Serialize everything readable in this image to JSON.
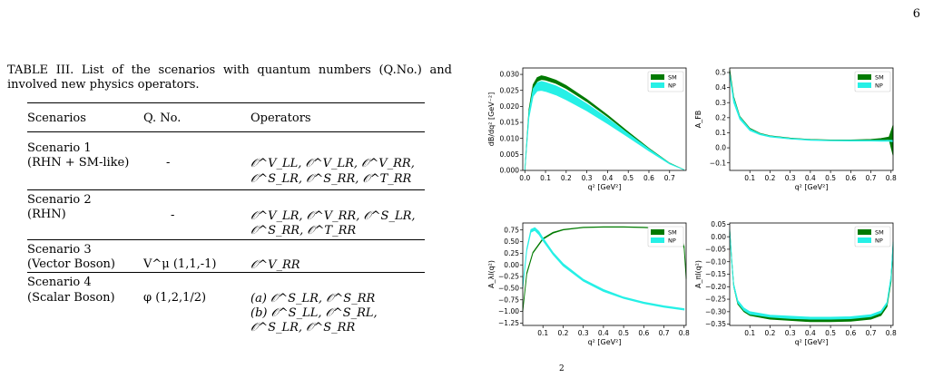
{
  "page_number": "6",
  "caption": "TABLE III. List of the scenarios with quantum numbers (Q.No.) and involved new physics operators.",
  "table": {
    "headers": [
      "Scenarios",
      "Q. No.",
      "Operators"
    ],
    "rows": [
      {
        "name": [
          "Scenario 1",
          "(RHN + SM-like)"
        ],
        "qno": "-",
        "ops": [
          "𝒪^V_LL, 𝒪^V_LR, 𝒪^V_RR,",
          "𝒪^S_LR, 𝒪^S_RR, 𝒪^T_RR"
        ]
      },
      {
        "name": [
          "Scenario 2",
          "(RHN)"
        ],
        "qno": "-",
        "ops": [
          "𝒪^V_LR, 𝒪^V_RR, 𝒪^S_LR,",
          "𝒪^S_RR, 𝒪^T_RR"
        ]
      },
      {
        "name": [
          "Scenario 3",
          "(Vector Boson)"
        ],
        "qno": "V^μ (1,1,-1)",
        "ops": [
          "𝒪^V_RR"
        ]
      },
      {
        "name": [
          "Scenario 4",
          "(Scalar Boson)"
        ],
        "qno": "φ (1,2,1/2)",
        "ops": [
          "(a) 𝒪^S_LR, 𝒪^S_RR",
          "(b) 𝒪^S_LL, 𝒪^S_RL,",
          "𝒪^S_LR, 𝒪^S_RR"
        ]
      }
    ]
  },
  "figure_text_below": "2",
  "chart_data": [
    {
      "type": "line",
      "ylabel": "dB/dq² [GeV⁻²]",
      "xlabel": "q² [GeV²]",
      "xlim": [
        -0.01,
        0.78
      ],
      "ylim": [
        0.0,
        0.032
      ],
      "xticks": [
        "0.0",
        "0.1",
        "0.2",
        "0.3",
        "0.4",
        "0.5",
        "0.6",
        "0.7"
      ],
      "yticks": [
        "0.000",
        "0.005",
        "0.010",
        "0.015",
        "0.020",
        "0.025",
        "0.030"
      ],
      "legend_placement": "top-right",
      "series": [
        {
          "name": "SM",
          "color": "#007a00",
          "x": [
            0.0,
            0.02,
            0.04,
            0.06,
            0.08,
            0.1,
            0.15,
            0.2,
            0.3,
            0.4,
            0.5,
            0.6,
            0.7,
            0.77
          ],
          "lower": [
            0.0,
            0.018,
            0.0255,
            0.0278,
            0.0284,
            0.0282,
            0.0272,
            0.0256,
            0.0215,
            0.0168,
            0.0117,
            0.0067,
            0.0022,
            0.0002
          ],
          "upper": [
            0.0,
            0.019,
            0.0268,
            0.029,
            0.0296,
            0.0293,
            0.0282,
            0.0265,
            0.0222,
            0.0173,
            0.012,
            0.0069,
            0.0023,
            0.0002
          ]
        },
        {
          "name": "NP",
          "color": "#26f0e6",
          "x": [
            0.0,
            0.02,
            0.04,
            0.06,
            0.08,
            0.1,
            0.15,
            0.2,
            0.3,
            0.4,
            0.5,
            0.6,
            0.7,
            0.77
          ],
          "lower": [
            0.0,
            0.0165,
            0.0232,
            0.0248,
            0.025,
            0.0247,
            0.0236,
            0.0221,
            0.0186,
            0.0146,
            0.0104,
            0.0061,
            0.002,
            0.0002
          ],
          "upper": [
            0.0,
            0.0182,
            0.0255,
            0.0274,
            0.0278,
            0.0275,
            0.0264,
            0.0248,
            0.0208,
            0.0163,
            0.0115,
            0.0067,
            0.0022,
            0.0002
          ]
        }
      ]
    },
    {
      "type": "line",
      "ylabel": "A_FB",
      "xlabel": "q² [GeV²]",
      "xlim": [
        0.0,
        0.81
      ],
      "ylim": [
        -0.15,
        0.53
      ],
      "xticks": [
        "0.1",
        "0.2",
        "0.3",
        "0.4",
        "0.5",
        "0.6",
        "0.7",
        "0.8"
      ],
      "yticks": [
        "−0.1",
        "0.0",
        "0.1",
        "0.2",
        "0.3",
        "0.4",
        "0.5"
      ],
      "legend_placement": "top-right",
      "series": [
        {
          "name": "SM",
          "color": "#007a00",
          "x": [
            0.0,
            0.02,
            0.05,
            0.1,
            0.15,
            0.2,
            0.3,
            0.4,
            0.5,
            0.6,
            0.7,
            0.75,
            0.79,
            0.81
          ],
          "lower": [
            0.5,
            0.32,
            0.2,
            0.12,
            0.09,
            0.075,
            0.06,
            0.052,
            0.048,
            0.048,
            0.05,
            0.053,
            0.055,
            -0.05
          ],
          "upper": [
            0.52,
            0.34,
            0.21,
            0.13,
            0.097,
            0.08,
            0.065,
            0.056,
            0.052,
            0.052,
            0.056,
            0.062,
            0.072,
            0.15
          ]
        },
        {
          "name": "NP",
          "color": "#26f0e6",
          "x": [
            0.0,
            0.02,
            0.05,
            0.1,
            0.15,
            0.2,
            0.3,
            0.4,
            0.5,
            0.6,
            0.7,
            0.75,
            0.79,
            0.81
          ],
          "lower": [
            0.48,
            0.3,
            0.19,
            0.115,
            0.087,
            0.072,
            0.058,
            0.05,
            0.046,
            0.045,
            0.045,
            0.044,
            0.043,
            0.04
          ],
          "upper": [
            0.5,
            0.33,
            0.205,
            0.125,
            0.094,
            0.078,
            0.063,
            0.054,
            0.05,
            0.05,
            0.05,
            0.05,
            0.05,
            0.05
          ]
        }
      ]
    },
    {
      "type": "line",
      "ylabel": "A_λl(q²)",
      "xlabel": "q² [GeV²]",
      "xlim": [
        0.0,
        0.81
      ],
      "ylim": [
        -1.3,
        0.9
      ],
      "xticks": [
        "0.1",
        "0.2",
        "0.3",
        "0.4",
        "0.5",
        "0.6",
        "0.7",
        "0.8"
      ],
      "yticks": [
        "−1.25",
        "−1.00",
        "−0.75",
        "−0.50",
        "−0.25",
        "0.00",
        "0.25",
        "0.50",
        "0.75"
      ],
      "legend_placement": "top-right",
      "series": [
        {
          "name": "SM",
          "color": "#007a00",
          "x": [
            0.0,
            0.02,
            0.05,
            0.1,
            0.15,
            0.2,
            0.3,
            0.4,
            0.5,
            0.6,
            0.7,
            0.75,
            0.78,
            0.8,
            0.81
          ],
          "lower": [
            -1.0,
            -0.2,
            0.25,
            0.55,
            0.68,
            0.75,
            0.8,
            0.81,
            0.81,
            0.8,
            0.78,
            0.74,
            0.65,
            0.35,
            -0.3
          ],
          "upper": [
            -0.98,
            -0.17,
            0.27,
            0.57,
            0.7,
            0.76,
            0.81,
            0.82,
            0.82,
            0.81,
            0.79,
            0.76,
            0.68,
            0.4,
            -0.25
          ]
        },
        {
          "name": "NP",
          "color": "#26f0e6",
          "x": [
            0.0,
            0.02,
            0.04,
            0.06,
            0.08,
            0.1,
            0.15,
            0.2,
            0.3,
            0.4,
            0.5,
            0.6,
            0.7,
            0.8
          ],
          "lower": [
            -0.5,
            0.3,
            0.7,
            0.74,
            0.65,
            0.52,
            0.22,
            -0.02,
            -0.35,
            -0.57,
            -0.72,
            -0.83,
            -0.91,
            -0.97
          ],
          "upper": [
            -0.45,
            0.35,
            0.76,
            0.8,
            0.72,
            0.58,
            0.27,
            0.03,
            -0.31,
            -0.53,
            -0.69,
            -0.8,
            -0.88,
            -0.94
          ]
        }
      ]
    },
    {
      "type": "line",
      "ylabel": "A_πl(q²)",
      "xlabel": "q² [GeV²]",
      "xlim": [
        0.0,
        0.81
      ],
      "ylim": [
        -0.355,
        0.055
      ],
      "xticks": [
        "0.1",
        "0.2",
        "0.3",
        "0.4",
        "0.5",
        "0.6",
        "0.7",
        "0.8"
      ],
      "yticks": [
        "−0.35",
        "−0.30",
        "−0.25",
        "−0.20",
        "−0.15",
        "−0.10",
        "−0.05",
        "0.00",
        "0.05"
      ],
      "legend_placement": "top-right",
      "series": [
        {
          "name": "SM",
          "color": "#007a00",
          "x": [
            0.0,
            0.01,
            0.02,
            0.04,
            0.07,
            0.1,
            0.2,
            0.3,
            0.4,
            0.5,
            0.6,
            0.7,
            0.75,
            0.78,
            0.8,
            0.81
          ],
          "lower": [
            0.02,
            -0.1,
            -0.2,
            -0.27,
            -0.3,
            -0.315,
            -0.33,
            -0.335,
            -0.34,
            -0.34,
            -0.338,
            -0.33,
            -0.315,
            -0.28,
            -0.18,
            -0.05
          ],
          "upper": [
            0.03,
            -0.09,
            -0.19,
            -0.26,
            -0.29,
            -0.305,
            -0.32,
            -0.326,
            -0.33,
            -0.33,
            -0.328,
            -0.32,
            -0.305,
            -0.27,
            -0.16,
            -0.03
          ]
        },
        {
          "name": "NP",
          "color": "#26f0e6",
          "x": [
            0.0,
            0.01,
            0.02,
            0.04,
            0.07,
            0.1,
            0.2,
            0.3,
            0.4,
            0.5,
            0.6,
            0.7,
            0.75,
            0.78,
            0.8,
            0.81
          ],
          "lower": [
            0.02,
            -0.1,
            -0.2,
            -0.265,
            -0.295,
            -0.31,
            -0.322,
            -0.327,
            -0.33,
            -0.33,
            -0.328,
            -0.32,
            -0.305,
            -0.27,
            -0.17,
            -0.04
          ],
          "upper": [
            0.03,
            -0.09,
            -0.19,
            -0.255,
            -0.285,
            -0.3,
            -0.314,
            -0.318,
            -0.322,
            -0.322,
            -0.32,
            -0.312,
            -0.297,
            -0.262,
            -0.155,
            -0.02
          ]
        }
      ]
    }
  ]
}
